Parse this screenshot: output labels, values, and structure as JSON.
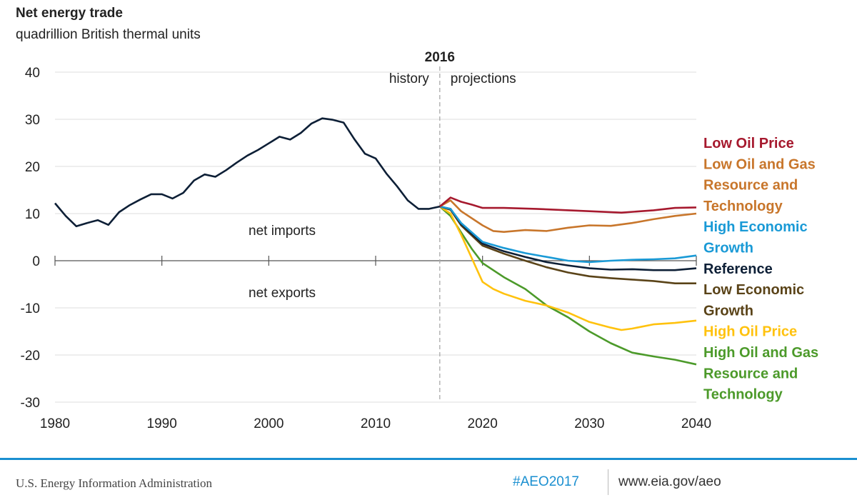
{
  "chart_data": {
    "type": "line",
    "title": "Net energy trade",
    "subtitle": "quadrillion British thermal units",
    "xlim": [
      1980,
      2040
    ],
    "ylim": [
      -30,
      40
    ],
    "x_ticks": [
      "1980",
      "1990",
      "2000",
      "2010",
      "2020",
      "2030",
      "2040"
    ],
    "y_ticks": [
      "40",
      "30",
      "20",
      "10",
      "0",
      "-10",
      "-20",
      "-30"
    ],
    "grid": "horizontal",
    "annotations": {
      "year": "2016",
      "history": "history",
      "projections": "projections",
      "net_imports": "net imports",
      "net_exports": "net exports"
    },
    "history": {
      "color": "#0d1f36",
      "x": [
        1980,
        1981,
        1982,
        1983,
        1984,
        1985,
        1986,
        1987,
        1988,
        1989,
        1990,
        1991,
        1992,
        1993,
        1994,
        1995,
        1996,
        1997,
        1998,
        1999,
        2000,
        2001,
        2002,
        2003,
        2004,
        2005,
        2006,
        2007,
        2008,
        2009,
        2010,
        2011,
        2012,
        2013,
        2014,
        2015,
        2016
      ],
      "y": [
        12.2,
        9.5,
        7.3,
        8,
        8.6,
        7.6,
        10.3,
        11.8,
        13,
        14.1,
        14.1,
        13.2,
        14.4,
        17,
        18.3,
        17.8,
        19.2,
        20.8,
        22.3,
        23.5,
        24.9,
        26.3,
        25.7,
        27.1,
        29.1,
        30.2,
        29.9,
        29.3,
        25.8,
        22.7,
        21.7,
        18.5,
        15.8,
        12.8,
        11,
        11,
        11.5
      ]
    },
    "series": [
      {
        "name": "Low Oil Price",
        "label_lines": [
          "Low Oil Price"
        ],
        "color": "#a6192e",
        "x": [
          2016,
          2017,
          2018,
          2019,
          2020,
          2022,
          2025,
          2030,
          2033,
          2036,
          2038,
          2040
        ],
        "y": [
          11.5,
          13.4,
          12.5,
          11.9,
          11.2,
          11.2,
          11,
          10.5,
          10.2,
          10.7,
          11.2,
          11.3
        ]
      },
      {
        "name": "Low Oil and Gas Resource and Technology",
        "label_lines": [
          "Low Oil and Gas",
          "Resource and",
          "Technology"
        ],
        "color": "#c8762b",
        "x": [
          2016,
          2017,
          2018,
          2020,
          2021,
          2022,
          2024,
          2026,
          2028,
          2030,
          2032,
          2034,
          2036,
          2038,
          2040
        ],
        "y": [
          11.5,
          12.8,
          10.5,
          7.5,
          6.3,
          6.1,
          6.5,
          6.3,
          7,
          7.5,
          7.4,
          8,
          8.8,
          9.5,
          10
        ]
      },
      {
        "name": "High Economic Growth",
        "label_lines": [
          "High Economic",
          "Growth"
        ],
        "color": "#1a9ad6",
        "x": [
          2016,
          2017,
          2018,
          2020,
          2022,
          2024,
          2026,
          2028,
          2030,
          2032,
          2034,
          2036,
          2038,
          2040
        ],
        "y": [
          11.5,
          11,
          8,
          4,
          2.7,
          1.6,
          0.8,
          0,
          -0.3,
          0,
          0.2,
          0.3,
          0.5,
          1.1
        ]
      },
      {
        "name": "Reference",
        "label_lines": [
          "Reference"
        ],
        "color": "#0d1f36",
        "x": [
          2016,
          2017,
          2018,
          2020,
          2022,
          2024,
          2026,
          2028,
          2030,
          2032,
          2034,
          2036,
          2038,
          2040
        ],
        "y": [
          11.5,
          11,
          7.8,
          3.6,
          2,
          0.8,
          -0.3,
          -1,
          -1.6,
          -1.9,
          -1.8,
          -2,
          -2,
          -1.6
        ]
      },
      {
        "name": "Low Economic Growth",
        "label_lines": [
          "Low Economic",
          "Growth"
        ],
        "color": "#5a4318",
        "x": [
          2016,
          2017,
          2018,
          2020,
          2022,
          2024,
          2026,
          2028,
          2030,
          2032,
          2034,
          2036,
          2038,
          2040
        ],
        "y": [
          11.5,
          10.8,
          7.5,
          3.2,
          1.5,
          0,
          -1.4,
          -2.5,
          -3.3,
          -3.7,
          -4,
          -4.3,
          -4.8,
          -4.8
        ]
      },
      {
        "name": "High Oil Price",
        "label_lines": [
          "High Oil Price"
        ],
        "color": "#ffc20e",
        "x": [
          2016,
          2017,
          2018,
          2019,
          2020,
          2021,
          2022,
          2024,
          2025,
          2026,
          2028,
          2030,
          2032,
          2033,
          2034,
          2036,
          2038,
          2040
        ],
        "y": [
          11.5,
          10,
          5.5,
          0.5,
          -4.5,
          -6,
          -7,
          -8.5,
          -9,
          -9.5,
          -11,
          -13,
          -14.2,
          -14.7,
          -14.4,
          -13.5,
          -13.2,
          -12.7
        ]
      },
      {
        "name": "High Oil and Gas Resource and Technology",
        "label_lines": [
          "High Oil and Gas",
          "Resource and",
          "Technology"
        ],
        "color": "#4c9a2a",
        "x": [
          2016,
          2017,
          2018,
          2019,
          2020,
          2022,
          2024,
          2026,
          2028,
          2030,
          2032,
          2034,
          2036,
          2038,
          2040
        ],
        "y": [
          11.5,
          9.5,
          6,
          2.5,
          -0.5,
          -3.5,
          -6,
          -9.5,
          -12,
          -15,
          -17.5,
          -19.5,
          -20.3,
          -21,
          -22
        ]
      }
    ]
  },
  "footer": {
    "source": "U.S. Energy Information Administration",
    "hashtag": "#AEO2017",
    "url": "www.eia.gov/aeo",
    "rule_color": "#1a8fd0"
  }
}
